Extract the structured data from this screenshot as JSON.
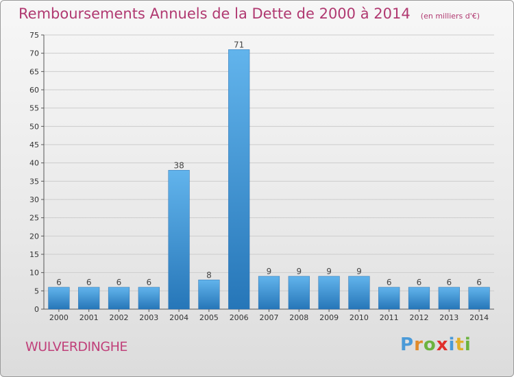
{
  "chart_data": {
    "type": "bar",
    "title": "Remboursements Annuels de la Dette de 2000 à 2014",
    "subtitle": "(en milliers d'€)",
    "categories": [
      "2000",
      "2001",
      "2002",
      "2003",
      "2004",
      "2005",
      "2006",
      "2007",
      "2008",
      "2009",
      "2010",
      "2011",
      "2012",
      "2013",
      "2014"
    ],
    "values": [
      6,
      6,
      6,
      6,
      38,
      8,
      71,
      9,
      9,
      9,
      9,
      6,
      6,
      6,
      6
    ],
    "ylim": [
      0,
      75
    ],
    "yticks": [
      0,
      5,
      10,
      15,
      20,
      25,
      30,
      35,
      40,
      45,
      50,
      55,
      60,
      65,
      70,
      75
    ],
    "grid": true,
    "colors": {
      "bar_light": "#62b4ec",
      "bar_dark": "#2676b8",
      "grid": "#cccccc",
      "title": "#b03870"
    }
  },
  "footer": {
    "commune": "WULVERDINGHE",
    "logo_letters": [
      "P",
      "r",
      "o",
      "x",
      "i",
      "t",
      "i"
    ],
    "logo_colors": [
      "#4a9ad8",
      "#e08a2a",
      "#6cb33f",
      "#e0302c",
      "#4a9ad8",
      "#e0b02a",
      "#6cb33f"
    ]
  }
}
